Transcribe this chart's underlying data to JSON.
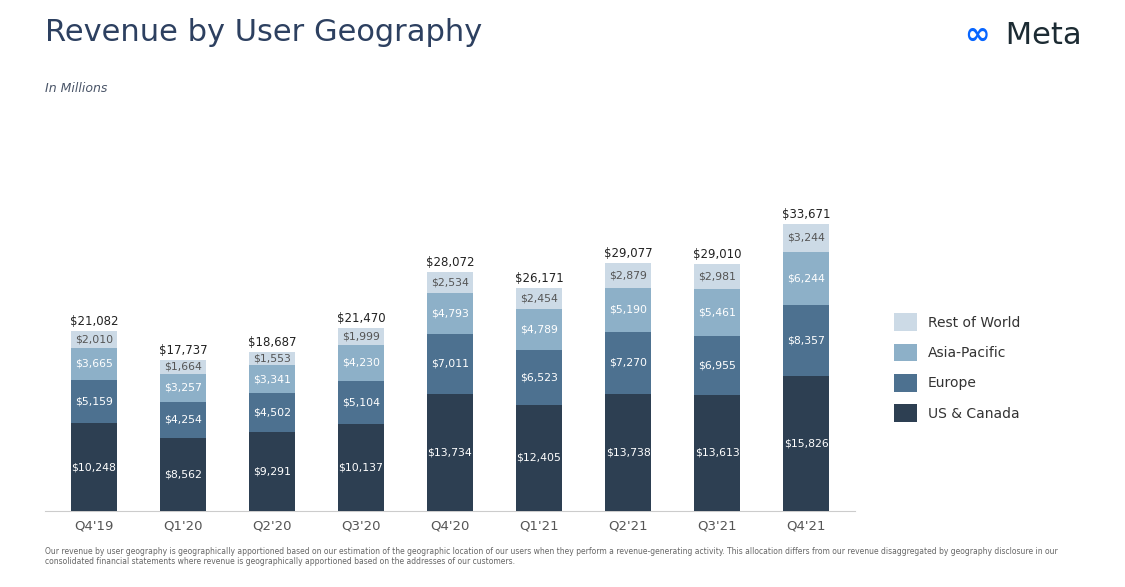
{
  "title": "Revenue by User Geography",
  "subtitle": "In Millions",
  "categories": [
    "Q4'19",
    "Q1'20",
    "Q2'20",
    "Q3'20",
    "Q4'20",
    "Q1'21",
    "Q2'21",
    "Q3'21",
    "Q4'21"
  ],
  "us_canada": [
    10248,
    8562,
    9291,
    10137,
    13734,
    12405,
    13738,
    13613,
    15826
  ],
  "europe": [
    5159,
    4254,
    4502,
    5104,
    7011,
    6523,
    7270,
    6955,
    8357
  ],
  "asia_pacific": [
    3665,
    3257,
    3341,
    4230,
    4793,
    4789,
    5190,
    5461,
    6244
  ],
  "rest_world": [
    2010,
    1664,
    1553,
    1999,
    2534,
    2454,
    2879,
    2981,
    3244
  ],
  "totals": [
    21082,
    17737,
    18687,
    21470,
    28072,
    26171,
    29077,
    29010,
    33671
  ],
  "color_us_canada": "#2d3f52",
  "color_europe": "#4d7190",
  "color_asia_pacific": "#8db0c8",
  "color_rest_world": "#ccdae6",
  "background_color": "#ffffff",
  "bar_width": 0.52,
  "title_color": "#2d4060",
  "subtitle_color": "#4a5568",
  "label_color_dark": "#ffffff",
  "label_color_light": "#555555",
  "total_label_color": "#222222",
  "tick_color": "#555555",
  "spine_color": "#cccccc",
  "meta_symbol_color": "#0866ff",
  "meta_text_color": "#1c2b33",
  "legend_text_color": "#333333",
  "footnote_color": "#666666",
  "footnote": "Our revenue by user geography is geographically apportioned based on our estimation of the geographic location of our users when they perform a revenue-generating activity. This allocation differs from our revenue disaggregated by geography disclosure in our consolidated financial statements where revenue is geographically apportioned based on the addresses of our customers.",
  "legend_labels": [
    "Rest of World",
    "Asia-Pacific",
    "Europe",
    "US & Canada"
  ],
  "ylim": [
    0,
    40000
  ],
  "label_fontsize": 7.8,
  "total_fontsize": 8.5,
  "tick_fontsize": 9.5,
  "title_fontsize": 22,
  "subtitle_fontsize": 9
}
